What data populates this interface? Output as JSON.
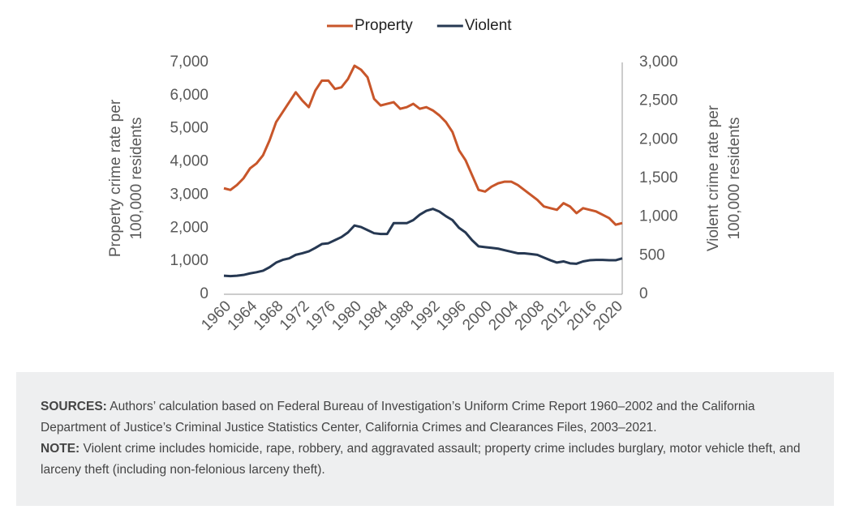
{
  "chart_data": {
    "type": "line",
    "x": [
      1960,
      1961,
      1962,
      1963,
      1964,
      1965,
      1966,
      1967,
      1968,
      1969,
      1970,
      1971,
      1972,
      1973,
      1974,
      1975,
      1976,
      1977,
      1978,
      1979,
      1980,
      1981,
      1982,
      1983,
      1984,
      1985,
      1986,
      1987,
      1988,
      1989,
      1990,
      1991,
      1992,
      1993,
      1994,
      1995,
      1996,
      1997,
      1998,
      1999,
      2000,
      2001,
      2002,
      2003,
      2004,
      2005,
      2006,
      2007,
      2008,
      2009,
      2010,
      2011,
      2012,
      2013,
      2014,
      2015,
      2016,
      2017,
      2018,
      2019,
      2020,
      2021
    ],
    "series": [
      {
        "name": "Property",
        "color": "#c8562a",
        "axis": "y",
        "values": [
          3200,
          3150,
          3300,
          3500,
          3800,
          3950,
          4200,
          4650,
          5200,
          5500,
          5800,
          6100,
          5850,
          5650,
          6150,
          6450,
          6450,
          6200,
          6250,
          6500,
          6900,
          6780,
          6550,
          5900,
          5700,
          5750,
          5800,
          5600,
          5650,
          5750,
          5600,
          5650,
          5550,
          5400,
          5200,
          4900,
          4350,
          4050,
          3600,
          3150,
          3100,
          3250,
          3350,
          3400,
          3400,
          3300,
          3150,
          3000,
          2850,
          2650,
          2600,
          2550,
          2750,
          2650,
          2450,
          2600,
          2550,
          2500,
          2400,
          2300,
          2100,
          2150
        ]
      },
      {
        "name": "Violent",
        "color": "#263852",
        "axis": "y2",
        "values": [
          240,
          235,
          240,
          250,
          270,
          285,
          305,
          350,
          410,
          445,
          465,
          510,
          530,
          555,
          600,
          650,
          660,
          700,
          740,
          800,
          890,
          870,
          830,
          790,
          780,
          780,
          920,
          920,
          920,
          960,
          1030,
          1080,
          1105,
          1070,
          1010,
          960,
          860,
          800,
          700,
          620,
          610,
          600,
          590,
          570,
          550,
          530,
          530,
          520,
          510,
          475,
          440,
          410,
          425,
          400,
          395,
          425,
          440,
          445,
          445,
          440,
          440,
          465
        ]
      }
    ],
    "xlim": [
      1960,
      2021
    ],
    "xticks": [
      1960,
      1964,
      1968,
      1972,
      1976,
      1980,
      1984,
      1988,
      1992,
      1996,
      2000,
      2004,
      2008,
      2012,
      2016,
      2020
    ],
    "ylim": [
      0,
      7000
    ],
    "yticks": [
      0,
      {
        "value": 1000,
        "label": "1,000"
      },
      {
        "value": 2000,
        "label": "2,000"
      },
      {
        "value": 3000,
        "label": "3,000"
      },
      {
        "value": 4000,
        "label": "4,000"
      },
      {
        "value": 5000,
        "label": "5,000"
      },
      {
        "value": 6000,
        "label": "6,000"
      },
      {
        "value": 7000,
        "label": "7,000"
      }
    ],
    "y2lim": [
      0,
      3000
    ],
    "y2ticks": [
      0,
      500,
      {
        "value": 1000,
        "label": "1,000"
      },
      {
        "value": 1500,
        "label": "1,500"
      },
      {
        "value": 2000,
        "label": "2,000"
      },
      {
        "value": 2500,
        "label": "2,500"
      },
      {
        "value": 3000,
        "label": "3,000"
      }
    ],
    "ylabel": [
      "Property crime rate per",
      "100,000 residents"
    ],
    "y2label": [
      "Violent crime rate per",
      "100,000 residents"
    ],
    "legend": "top"
  },
  "note": {
    "sources_label": "SOURCES:",
    "sources": "Authors’ calculation based on Federal Bureau of Investigation’s Uniform Crime Report 1960–2002 and the California Department of Justice’s Criminal Justice Statistics Center, California Crimes and Clearances Files, 2003–2021.",
    "note_label": "NOTE:",
    "note": "Violent crime includes homicide, rape, robbery, and aggravated assault; property crime includes burglary, motor vehicle theft, and larceny theft (including non-felonious larceny theft)."
  }
}
